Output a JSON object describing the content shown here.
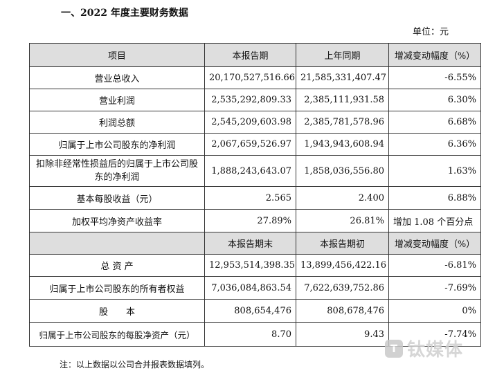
{
  "title": "一、2022 年度主要财务数据",
  "unit": "单位：元",
  "table": {
    "header1": [
      "项目",
      "本报告期",
      "上年同期",
      "增减变动幅度（%）"
    ],
    "rows1": [
      {
        "item": "营业总收入",
        "cur": "20,170,527,516.66",
        "prev": "21,585,331,407.47",
        "chg": "-6.55%"
      },
      {
        "item": "营业利润",
        "cur": "2,535,292,809.33",
        "prev": "2,385,111,931.58",
        "chg": "6.30%"
      },
      {
        "item": "利润总额",
        "cur": "2,545,209,603.98",
        "prev": "2,385,781,578.96",
        "chg": "6.68%"
      },
      {
        "item": "归属于上市公司股东的净利润",
        "cur": "2,067,659,526.97",
        "prev": "1,943,943,608.94",
        "chg": "6.36%"
      },
      {
        "item": "扣除非经常性损益后的归属于上市公司股东的净利润",
        "cur": "1,888,243,643.07",
        "prev": "1,858,036,556.80",
        "chg": "1.63%"
      },
      {
        "item": "基本每股收益（元）",
        "cur": "2.565",
        "prev": "2.400",
        "chg": "6.88%"
      },
      {
        "item": "加权平均净资产收益率",
        "cur": "27.89%",
        "prev": "26.81%",
        "chg": "增加 1.08 个百分点"
      }
    ],
    "header2": [
      "",
      "本报告期末",
      "本报告期初",
      "增减变动幅度（%）"
    ],
    "rows2": [
      {
        "item": "总 资 产",
        "cur": "12,953,514,398.35",
        "prev": "13,899,456,422.16",
        "chg": "-6.81%"
      },
      {
        "item": "归属于上市公司股东的所有者权益",
        "cur": "7,036,084,863.54",
        "prev": "7,622,639,752.86",
        "chg": "-7.69%"
      },
      {
        "item": "股　　本",
        "cur": "808,654,476",
        "prev": "808,678,476",
        "chg": "0%"
      },
      {
        "item": "归属于上市公司股东的每股净资产（元）",
        "cur": "8.70",
        "prev": "9.43",
        "chg": "-7.74%"
      }
    ]
  },
  "note": "注：以上数据以公司合并报表数据填列。",
  "watermark": {
    "logo": "T",
    "text": "钛媒体"
  }
}
